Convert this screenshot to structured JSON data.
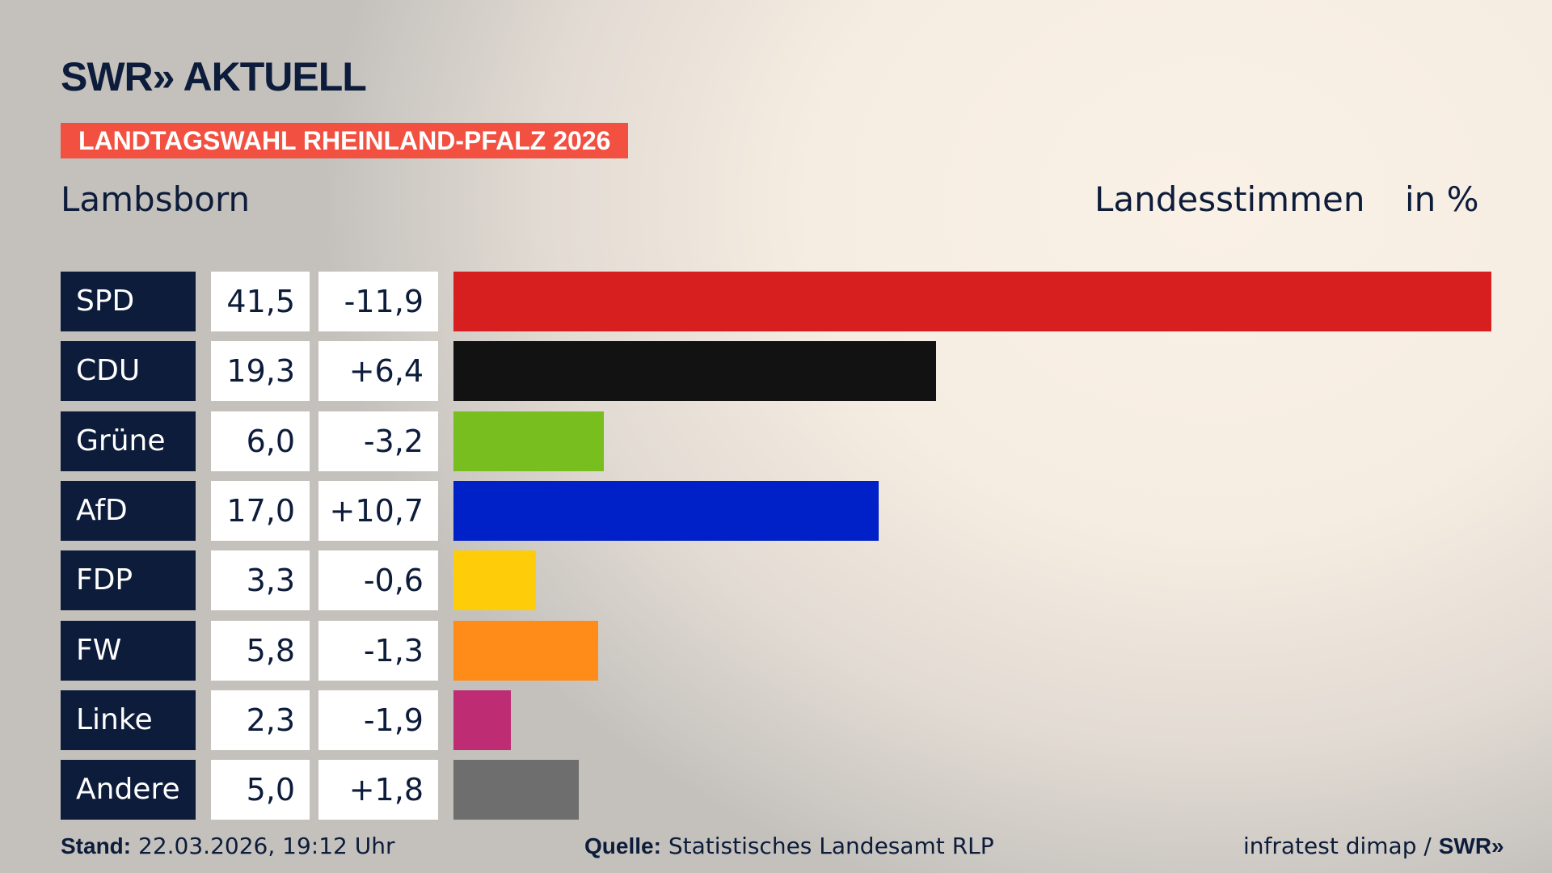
{
  "header": {
    "logo": "SWR» AKTUELL",
    "banner": "LANDTAGSWAHL RHEINLAND-PFALZ 2026",
    "place": "Lambsborn",
    "mode": "Landesstimmen",
    "unit": "in %"
  },
  "chart_data": {
    "type": "bar",
    "orientation": "horizontal",
    "categories": [
      "SPD",
      "CDU",
      "Grüne",
      "AfD",
      "FDP",
      "FW",
      "Linke",
      "Andere"
    ],
    "values": [
      41.5,
      19.3,
      6.0,
      17.0,
      3.3,
      5.8,
      2.3,
      5.0
    ],
    "value_labels": [
      "41,5",
      "19,3",
      "6,0",
      "17,0",
      "3,3",
      "5,8",
      "2,3",
      "5,0"
    ],
    "diff": [
      -11.9,
      6.4,
      -3.2,
      10.7,
      -0.6,
      -1.3,
      -1.9,
      1.8
    ],
    "diff_labels": [
      "-11,9",
      "+6,4",
      "-3,2",
      "+10,7",
      "-0,6",
      "-1,3",
      "-1,9",
      "+1,8"
    ],
    "colors": [
      "#d71f1f",
      "#121212",
      "#78be1e",
      "#0020c8",
      "#ffcc0a",
      "#ff8c19",
      "#be2d73",
      "#6e6e6e"
    ],
    "grid": false,
    "legend": "none"
  },
  "footer": {
    "stand_label": "Stand:",
    "stand": "22.03.2026, 19:12 Uhr",
    "source_label": "Quelle:",
    "source": "Statistisches Landesamt RLP",
    "credit": "infratest dimap /",
    "credit_logo": "SWR»"
  }
}
